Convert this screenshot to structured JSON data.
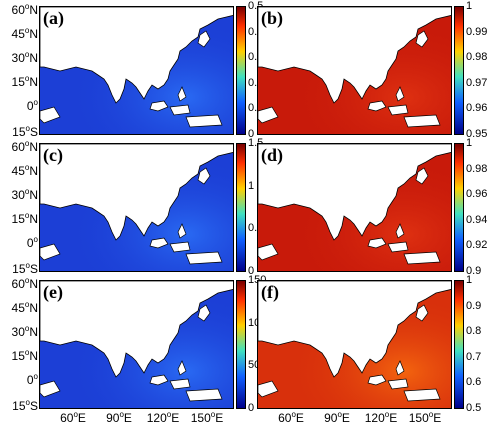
{
  "panels": [
    {
      "label": "(a)",
      "ticks": [
        "0.5",
        "0.4",
        "0.3",
        "0.2",
        "0.1",
        "0"
      ],
      "scheme": "low"
    },
    {
      "label": "(b)",
      "ticks": [
        "1",
        "0.99",
        "0.98",
        "0.97",
        "0.96",
        "0.95"
      ],
      "scheme": "high"
    },
    {
      "label": "(c)",
      "ticks": [
        "1.5",
        "1",
        "0.5",
        "0"
      ],
      "scheme": "low"
    },
    {
      "label": "(d)",
      "ticks": [
        "1",
        "0.98",
        "0.96",
        "0.94",
        "0.92",
        "0.9"
      ],
      "scheme": "high"
    },
    {
      "label": "(e)",
      "ticks": [
        "150",
        "100",
        "50",
        "0"
      ],
      "scheme": "low"
    },
    {
      "label": "(f)",
      "ticks": [
        "1",
        "0.9",
        "0.8",
        "0.7",
        "0.6",
        "0.5"
      ],
      "scheme": "mid"
    }
  ],
  "lat_labels": [
    {
      "deg": "60",
      "hem": "N"
    },
    {
      "deg": "45",
      "hem": "N"
    },
    {
      "deg": "30",
      "hem": "N"
    },
    {
      "deg": "15",
      "hem": "N"
    },
    {
      "deg": "0",
      "hem": ""
    },
    {
      "deg": "15",
      "hem": "S"
    }
  ],
  "lon_labels": [
    {
      "deg": "60",
      "hem": "E"
    },
    {
      "deg": "90",
      "hem": "E"
    },
    {
      "deg": "120",
      "hem": "E"
    },
    {
      "deg": "150",
      "hem": "E"
    }
  ],
  "colors": {
    "low": "#1c3fd6",
    "high": "#c81a0a",
    "mid": "#d8300c",
    "land": "#ffffff"
  }
}
